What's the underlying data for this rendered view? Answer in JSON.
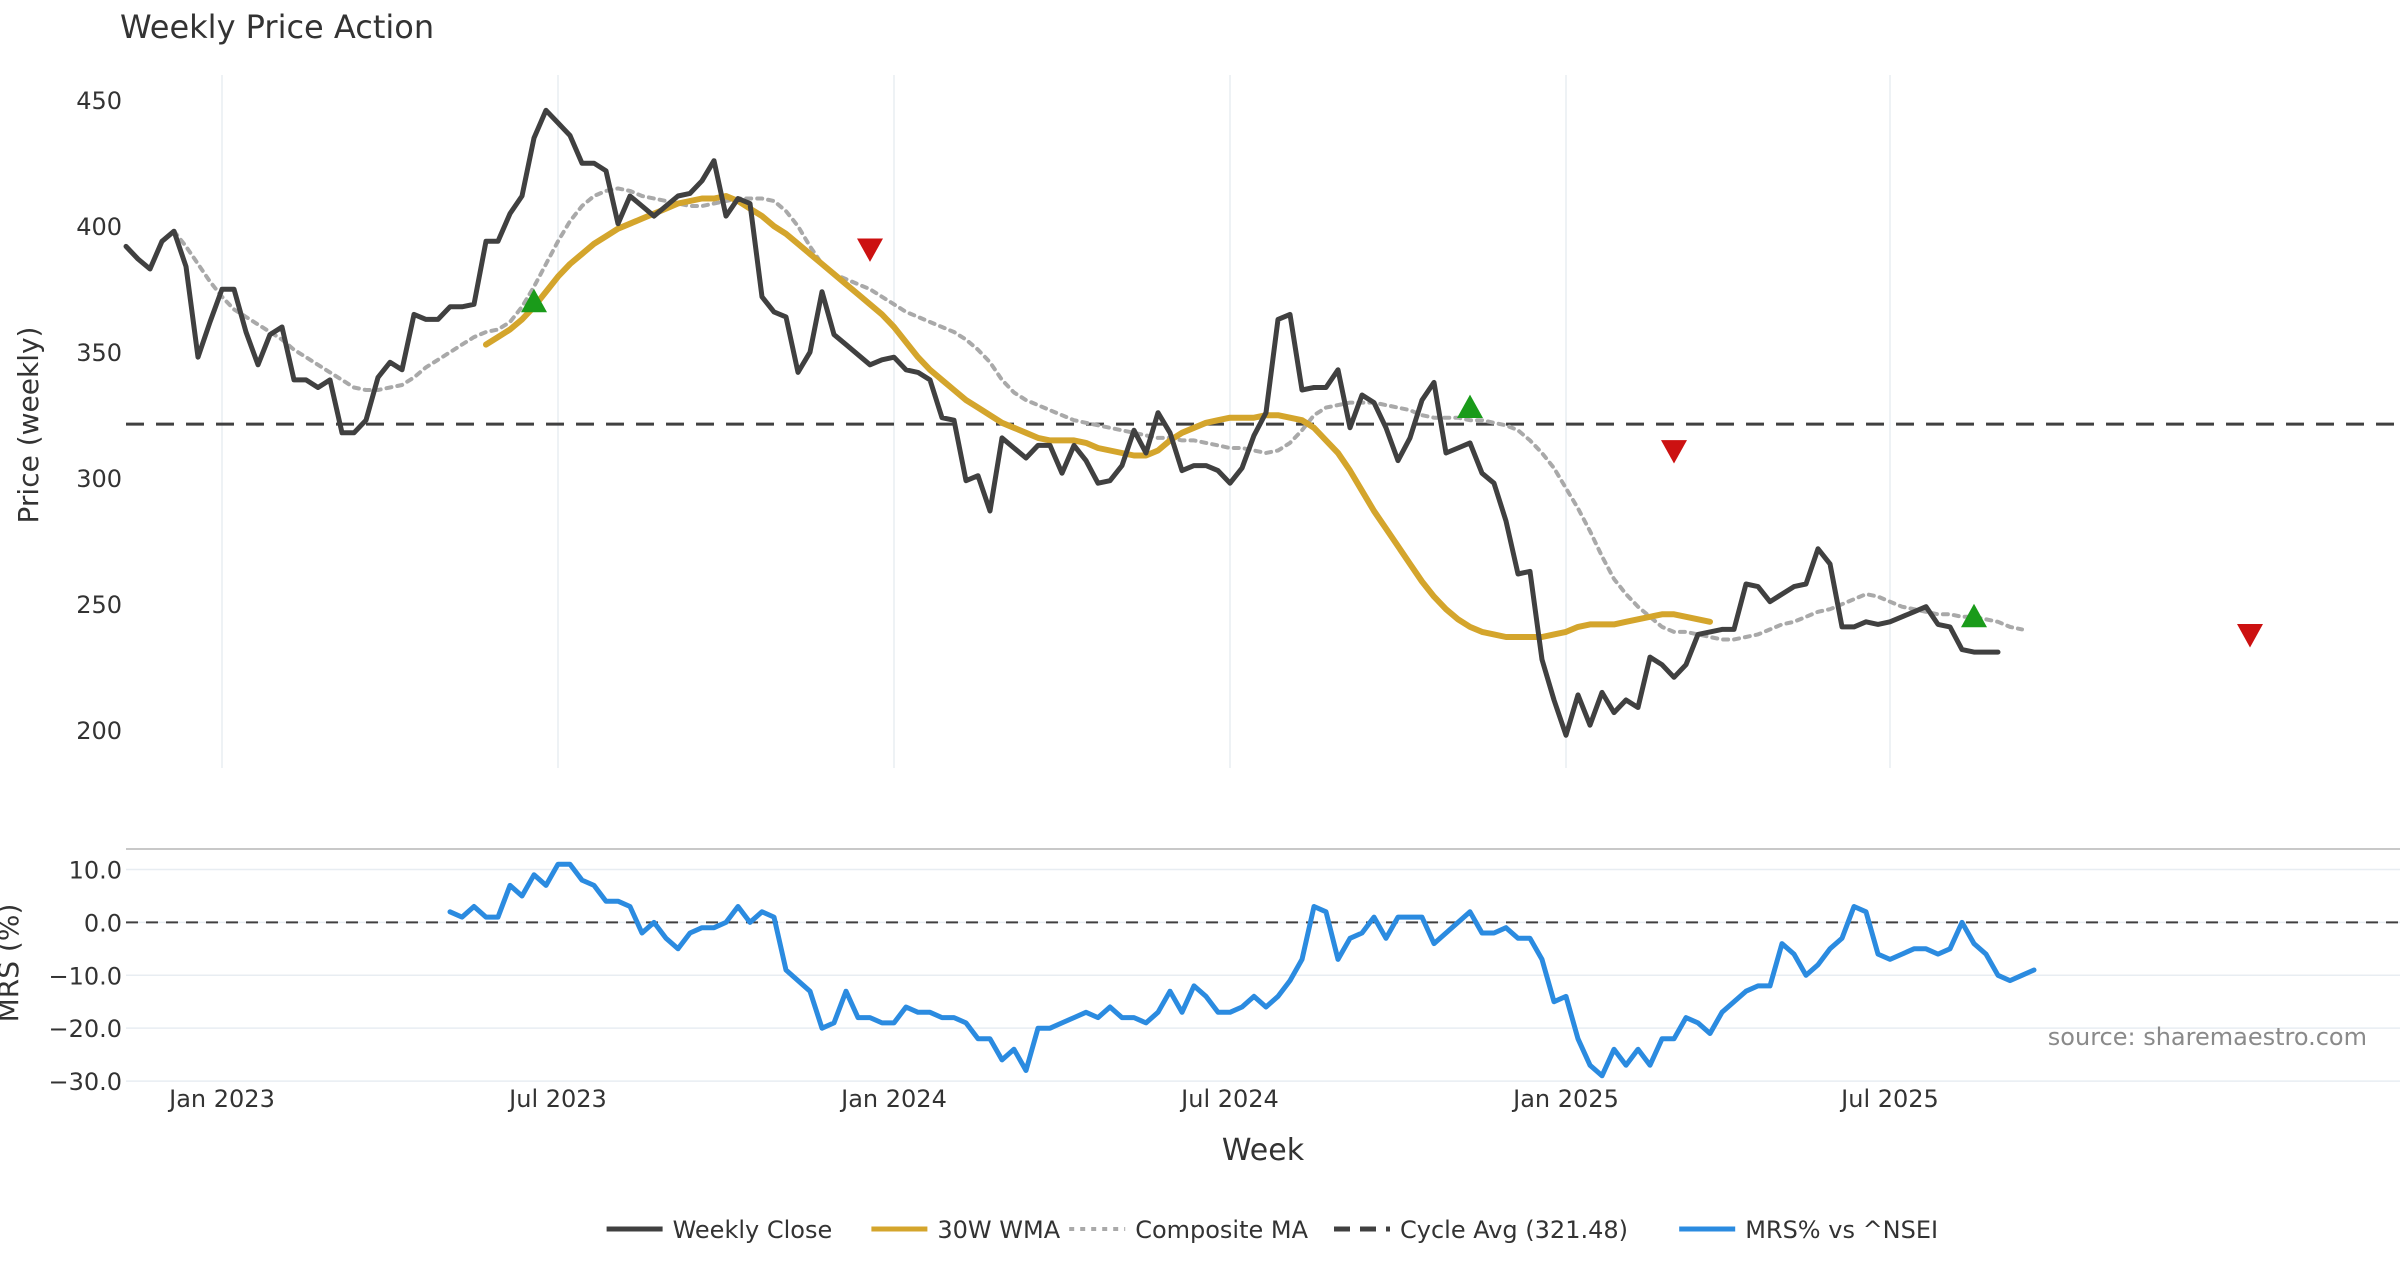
{
  "chart_data": [
    {
      "type": "line",
      "title": "Weekly Price Action",
      "ylabel": "Price (weekly)",
      "xlabel": "",
      "ylim": [
        185,
        460
      ],
      "yticks": [
        200,
        250,
        300,
        350,
        400,
        450
      ],
      "x_start_week": 0,
      "week_count": 185,
      "reference_line": {
        "name": "Cycle Avg (321.48)",
        "value": 321.48
      },
      "series": [
        {
          "name": "Weekly Close",
          "color": "#404040",
          "start_week": 0,
          "values": [
            392,
            387,
            383,
            394,
            398,
            384,
            348,
            362,
            375,
            375,
            358,
            345,
            357,
            360,
            339,
            339,
            336,
            339,
            318,
            318,
            323,
            340,
            346,
            343,
            365,
            363,
            363,
            368,
            368,
            369,
            394,
            394,
            405,
            412,
            435,
            446,
            441,
            436,
            425,
            425,
            422,
            401,
            412,
            408,
            404,
            408,
            412,
            413,
            418,
            426,
            404,
            411,
            409,
            372,
            366,
            364,
            342,
            350,
            374,
            357,
            353,
            349,
            345,
            347,
            348,
            343,
            342,
            339,
            324,
            323,
            299,
            301,
            287,
            316,
            312,
            308,
            313,
            313,
            302,
            313,
            307,
            298,
            299,
            305,
            319,
            310,
            326,
            318,
            303,
            305,
            305,
            303,
            298,
            304,
            317,
            326,
            363,
            365,
            335,
            336,
            336,
            343,
            320,
            333,
            330,
            320,
            307,
            316,
            331,
            338,
            310,
            312,
            314,
            302,
            298,
            283,
            262,
            263,
            228,
            212,
            198,
            214,
            202,
            215,
            207,
            212,
            209,
            229,
            226,
            221,
            226,
            238,
            239,
            240,
            240,
            258,
            257,
            251,
            254,
            257,
            258,
            272,
            266,
            241,
            241,
            243,
            242,
            243,
            245,
            247,
            249,
            242,
            241,
            232,
            231,
            231,
            231
          ]
        },
        {
          "name": "30W WMA",
          "color": "#d4a52c",
          "start_week": 30,
          "values": [
            353,
            356,
            359,
            363,
            368,
            374,
            380,
            385,
            389,
            393,
            396,
            399,
            401,
            403,
            405,
            407,
            409,
            410,
            411,
            411,
            412,
            410,
            407,
            404,
            400,
            397,
            393,
            389,
            385,
            381,
            377,
            373,
            369,
            365,
            360,
            354,
            348,
            343,
            339,
            335,
            331,
            328,
            325,
            322,
            320,
            318,
            316,
            315,
            315,
            315,
            314,
            312,
            311,
            310,
            309,
            309,
            311,
            315,
            318,
            320,
            322,
            323,
            324,
            324,
            324,
            325,
            325,
            324,
            323,
            320,
            315,
            310,
            303,
            295,
            287,
            280,
            273,
            266,
            259,
            253,
            248,
            244,
            241,
            239,
            238,
            237,
            237,
            237,
            237,
            238,
            239,
            241,
            242,
            242,
            242,
            243,
            244,
            245,
            246,
            246,
            245,
            244,
            243
          ]
        },
        {
          "name": "Composite MA",
          "color": "#a9a9a9",
          "start_week": 4,
          "values": [
            398,
            392,
            385,
            378,
            372,
            367,
            364,
            361,
            358,
            355,
            351,
            348,
            345,
            342,
            339,
            336,
            335,
            335,
            336,
            337,
            340,
            344,
            347,
            350,
            353,
            356,
            358,
            359,
            362,
            368,
            376,
            385,
            394,
            402,
            408,
            412,
            414,
            415,
            414,
            412,
            411,
            410,
            409,
            408,
            408,
            409,
            410,
            411,
            411,
            411,
            410,
            406,
            400,
            392,
            385,
            381,
            379,
            377,
            375,
            372,
            369,
            366,
            364,
            362,
            360,
            358,
            355,
            351,
            346,
            339,
            334,
            331,
            329,
            327,
            325,
            323,
            322,
            321,
            320,
            319,
            318,
            317,
            316,
            316,
            315,
            315,
            314,
            313,
            312,
            312,
            311,
            310,
            311,
            314,
            319,
            325,
            328,
            329,
            330,
            330,
            330,
            329,
            328,
            327,
            325,
            324,
            324,
            324,
            323,
            323,
            322,
            321,
            319,
            315,
            310,
            304,
            296,
            288,
            279,
            269,
            260,
            254,
            249,
            245,
            241,
            239,
            239,
            238,
            237,
            236,
            236,
            237,
            238,
            240,
            242,
            243,
            245,
            247,
            248,
            250,
            252,
            254,
            253,
            251,
            249,
            248,
            247,
            246,
            246,
            245,
            245,
            244,
            243,
            241,
            240
          ]
        }
      ],
      "markers": [
        {
          "type": "buy",
          "week": 34,
          "value": 370,
          "color": "#1a9b1a"
        },
        {
          "type": "sell",
          "week": 62,
          "value": 391,
          "color": "#cc1111"
        },
        {
          "type": "buy",
          "week": 112,
          "value": 328,
          "color": "#1a9b1a"
        },
        {
          "type": "sell",
          "week": 129,
          "value": 311,
          "color": "#cc1111"
        },
        {
          "type": "buy",
          "week": 154,
          "value": 245,
          "color": "#1a9b1a"
        },
        {
          "type": "sell",
          "week": 177,
          "value": 238,
          "color": "#cc1111"
        }
      ]
    },
    {
      "type": "line",
      "title": "",
      "ylabel": "MRS (%)",
      "xlabel": "Week",
      "ylim": [
        -31.5,
        13.5
      ],
      "yticks": [
        10,
        0,
        -10,
        -20,
        -30
      ],
      "ytick_labels": [
        "10.0",
        "0.0",
        "−10.0",
        "−20.0",
        "−30.0"
      ],
      "week_count": 185,
      "reference_line": {
        "name": "",
        "value": 0
      },
      "xticks": [
        {
          "label": "Jan 2023",
          "week": 8
        },
        {
          "label": "Jul 2023",
          "week": 36
        },
        {
          "label": "Jan 2024",
          "week": 64
        },
        {
          "label": "Jul 2024",
          "week": 92
        },
        {
          "label": "Jan 2025",
          "week": 120
        },
        {
          "label": "Jul 2025",
          "week": 147
        }
      ],
      "annotation": "source: sharemaestro.com",
      "series": [
        {
          "name": "MRS% vs ^NSEI",
          "color": "#2b8be0",
          "start_week": 27,
          "values": [
            2,
            1,
            3,
            1,
            1,
            7,
            5,
            9,
            7,
            11,
            11,
            8,
            7,
            4,
            4,
            3,
            -2,
            0,
            -3,
            -5,
            -2,
            -1,
            -1,
            0,
            3,
            0,
            2,
            1,
            -9,
            -11,
            -13,
            -20,
            -19,
            -13,
            -18,
            -18,
            -19,
            -19,
            -16,
            -17,
            -17,
            -18,
            -18,
            -19,
            -22,
            -22,
            -26,
            -24,
            -28,
            -20,
            -20,
            -19,
            -18,
            -17,
            -18,
            -16,
            -18,
            -18,
            -19,
            -17,
            -13,
            -17,
            -12,
            -14,
            -17,
            -17,
            -16,
            -14,
            -16,
            -14,
            -11,
            -7,
            3,
            2,
            -7,
            -3,
            -2,
            1,
            -3,
            1,
            1,
            1,
            -4,
            -2,
            0,
            2,
            -2,
            -2,
            -1,
            -3,
            -3,
            -7,
            -15,
            -14,
            -22,
            -27,
            -29,
            -24,
            -27,
            -24,
            -27,
            -22,
            -22,
            -18,
            -19,
            -21,
            -17,
            -15,
            -13,
            -12,
            -12,
            -4,
            -6,
            -10,
            -8,
            -5,
            -3,
            3,
            2,
            -6,
            -7,
            -6,
            -5,
            -5,
            -6,
            -5,
            0,
            -4,
            -6,
            -10,
            -11,
            -10,
            -9
          ]
        }
      ]
    }
  ],
  "legend": {
    "items": [
      {
        "label": "Weekly Close",
        "color": "#404040",
        "style": "solid"
      },
      {
        "label": "30W WMA",
        "color": "#d4a52c",
        "style": "solid"
      },
      {
        "label": "Composite MA",
        "color": "#a9a9a9",
        "style": "dotted"
      },
      {
        "label": "Cycle Avg (321.48)",
        "color": "#404040",
        "style": "dashed"
      },
      {
        "label": "MRS% vs ^NSEI",
        "color": "#2b8be0",
        "style": "solid"
      }
    ]
  }
}
